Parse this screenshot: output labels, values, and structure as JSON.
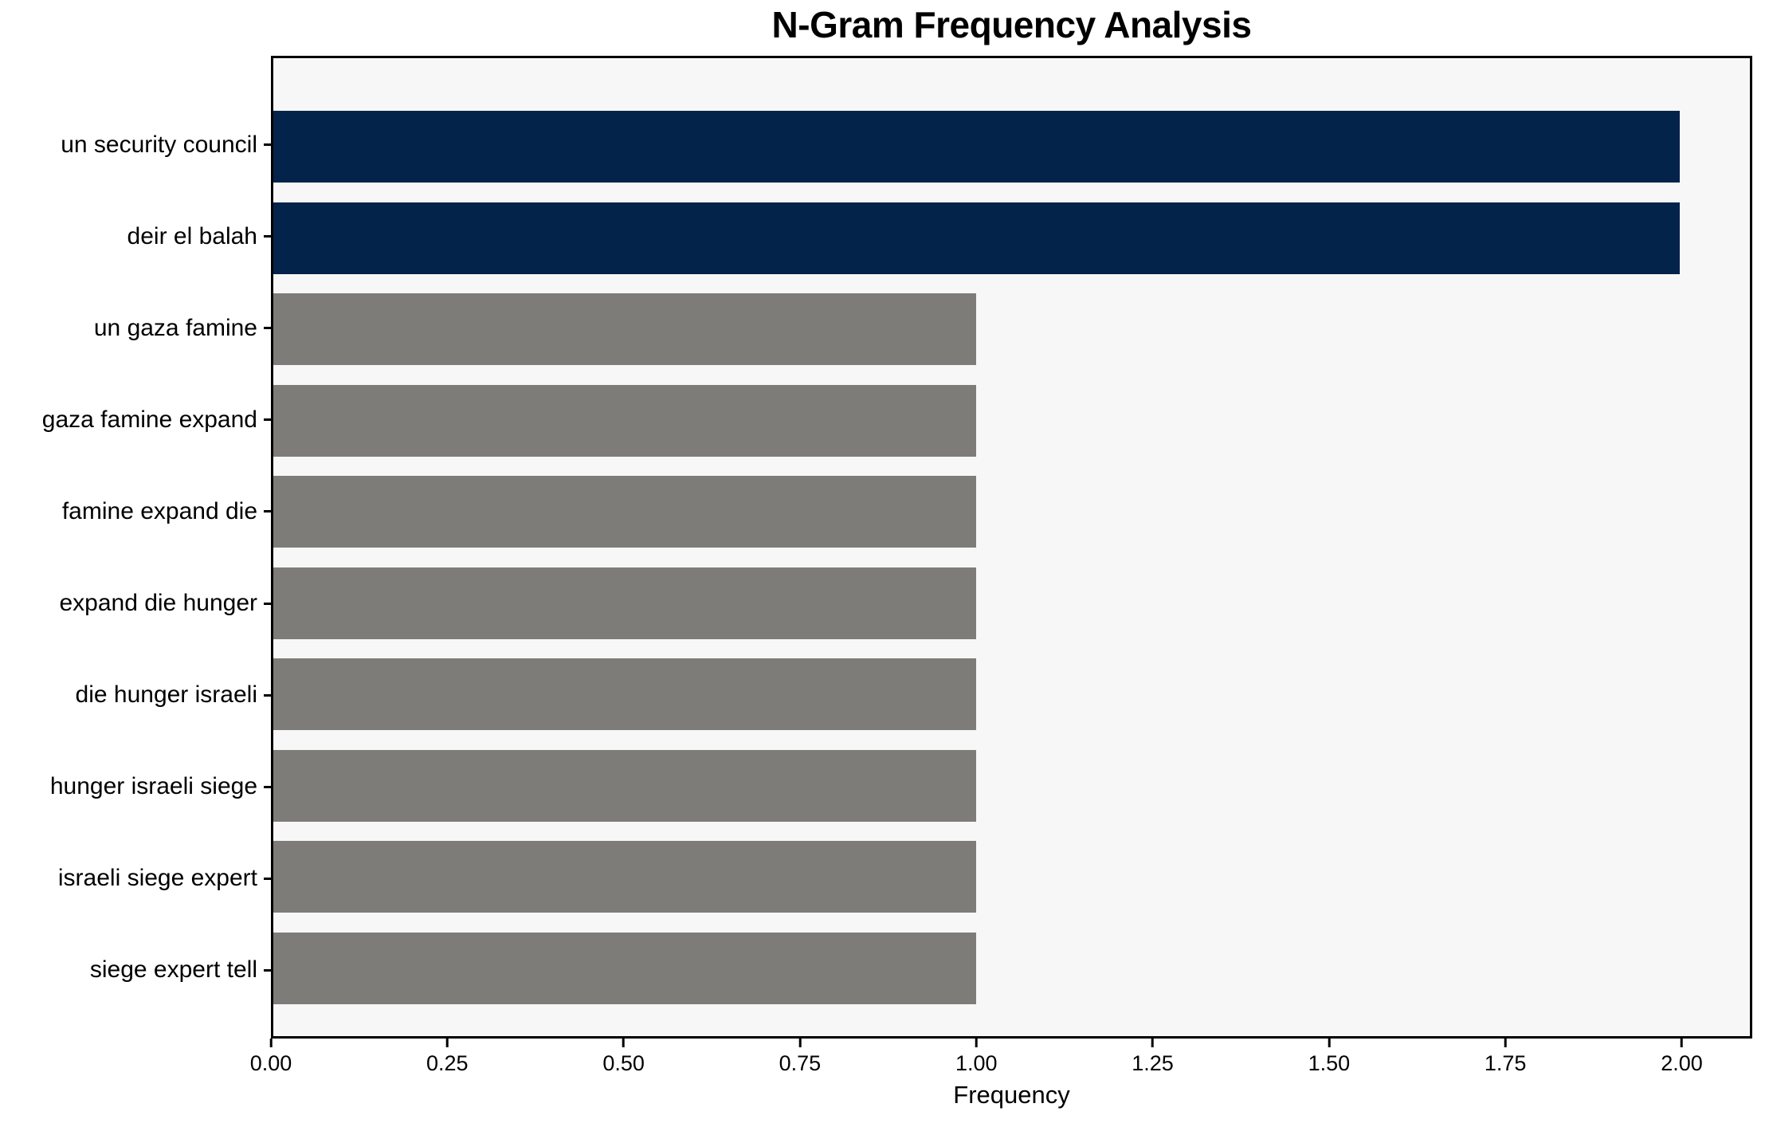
{
  "chart_data": {
    "type": "bar",
    "orientation": "horizontal",
    "title": "N-Gram Frequency Analysis",
    "xlabel": "Frequency",
    "ylabel": "",
    "categories": [
      "un security council",
      "deir el balah",
      "un gaza famine",
      "gaza famine expand",
      "famine expand die",
      "expand die hunger",
      "die hunger israeli",
      "hunger israeli siege",
      "israeli siege expert",
      "siege expert tell"
    ],
    "values": [
      2,
      2,
      1,
      1,
      1,
      1,
      1,
      1,
      1,
      1
    ],
    "bar_colors": [
      "#04234b",
      "#04234b",
      "#7d7c78",
      "#7d7c78",
      "#7d7c78",
      "#7d7c78",
      "#7d7c78",
      "#7d7c78",
      "#7d7c78",
      "#7d7c78"
    ],
    "xlim": [
      0,
      2.1
    ],
    "xticks": [
      {
        "value": 0.0,
        "label": "0.00"
      },
      {
        "value": 0.25,
        "label": "0.25"
      },
      {
        "value": 0.5,
        "label": "0.50"
      },
      {
        "value": 0.75,
        "label": "0.75"
      },
      {
        "value": 1.0,
        "label": "1.00"
      },
      {
        "value": 1.25,
        "label": "1.25"
      },
      {
        "value": 1.5,
        "label": "1.50"
      },
      {
        "value": 1.75,
        "label": "1.75"
      },
      {
        "value": 2.0,
        "label": "2.00"
      }
    ],
    "grid": false,
    "legend": false,
    "plot_bg": "#f7f7f7",
    "figure_bg": "#ffffff",
    "spine_color": "#000000",
    "text_color": "#000000"
  }
}
